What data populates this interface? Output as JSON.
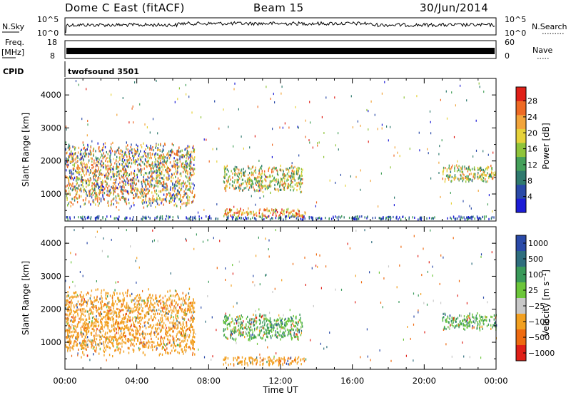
{
  "header": {
    "station": "Dome C East (fitACF)",
    "beam": "Beam 15",
    "date": "30/Jun/2014"
  },
  "top_panels": {
    "nsky_label": "N.Sky",
    "nsearch_label": "N.Search",
    "nsky_ticks": [
      "10^5",
      "10^0"
    ],
    "nsearch_ticks": [
      "10^5",
      "10^0"
    ],
    "freq_label": "Freq.",
    "freq_unit": "[MHz]",
    "freq_ticks": [
      "18",
      "8"
    ],
    "nave_label": "Nave",
    "nave_ticks": [
      "60",
      "0"
    ],
    "cpid_label": "CPID",
    "cpid_value": "twofsound 3501"
  },
  "chart_data": [
    {
      "type": "heatmap",
      "panel": "power",
      "title": "",
      "ylabel": "Slant Range [km]",
      "xlabel": "",
      "ylim": [
        180,
        4500
      ],
      "x_ticks": [
        "00:00",
        "04:00",
        "08:00",
        "12:00",
        "16:00",
        "20:00",
        "00:00"
      ],
      "y_ticks": [
        1000,
        2000,
        3000,
        4000
      ],
      "colorbar": {
        "label": "Power [dB]",
        "min": 0,
        "max": 31.5,
        "ticks": [
          "4",
          "8",
          "12",
          "16",
          "20",
          "24",
          "28"
        ],
        "colors": [
          "#1c1cd6",
          "#2a4aa8",
          "#2f7a6e",
          "#45a05a",
          "#8fc43a",
          "#e6d23a",
          "#f2a43a",
          "#ee6a24",
          "#e02018"
        ]
      },
      "regions": [
        {
          "t0": 0.0,
          "t1": 7.2,
          "r0": 500,
          "r1": 2600,
          "level": "high"
        },
        {
          "t0": 8.8,
          "t1": 13.2,
          "r0": 1000,
          "r1": 1850,
          "level": "mid"
        },
        {
          "t0": 8.8,
          "t1": 13.4,
          "r0": 250,
          "r1": 550,
          "level": "mid-high"
        },
        {
          "t0": 21.0,
          "t1": 24.0,
          "r0": 1300,
          "r1": 1850,
          "level": "mid"
        },
        {
          "t0": 0.0,
          "t1": 24.0,
          "r0": 180,
          "r1": 300,
          "level": "low"
        }
      ]
    },
    {
      "type": "heatmap",
      "panel": "velocity",
      "title": "",
      "ylabel": "Slant Range [km]",
      "xlabel": "Time UT",
      "ylim": [
        180,
        4500
      ],
      "x_ticks": [
        "00:00",
        "04:00",
        "08:00",
        "12:00",
        "16:00",
        "20:00",
        "00:00"
      ],
      "y_ticks": [
        1000,
        2000,
        3000,
        4000
      ],
      "colorbar": {
        "label": "Velocity [m s^-1]",
        "ticks": [
          "1000",
          "500",
          "100",
          "25",
          "−25",
          "−100",
          "−500",
          "−1000"
        ],
        "colors": [
          "#2a4aa8",
          "#2f6e7e",
          "#3a9a5a",
          "#6cc63a",
          "#c8c8c8",
          "#f2a020",
          "#ee6a10",
          "#e02018"
        ]
      },
      "regions": [
        {
          "t0": 0.0,
          "t1": 7.2,
          "r0": 500,
          "r1": 2600,
          "level": "orange"
        },
        {
          "t0": 8.8,
          "t1": 13.2,
          "r0": 1000,
          "r1": 1850,
          "level": "green"
        },
        {
          "t0": 8.8,
          "t1": 13.4,
          "r0": 250,
          "r1": 550,
          "level": "orange"
        },
        {
          "t0": 21.0,
          "t1": 24.0,
          "r0": 1300,
          "r1": 1850,
          "level": "green"
        }
      ]
    }
  ]
}
